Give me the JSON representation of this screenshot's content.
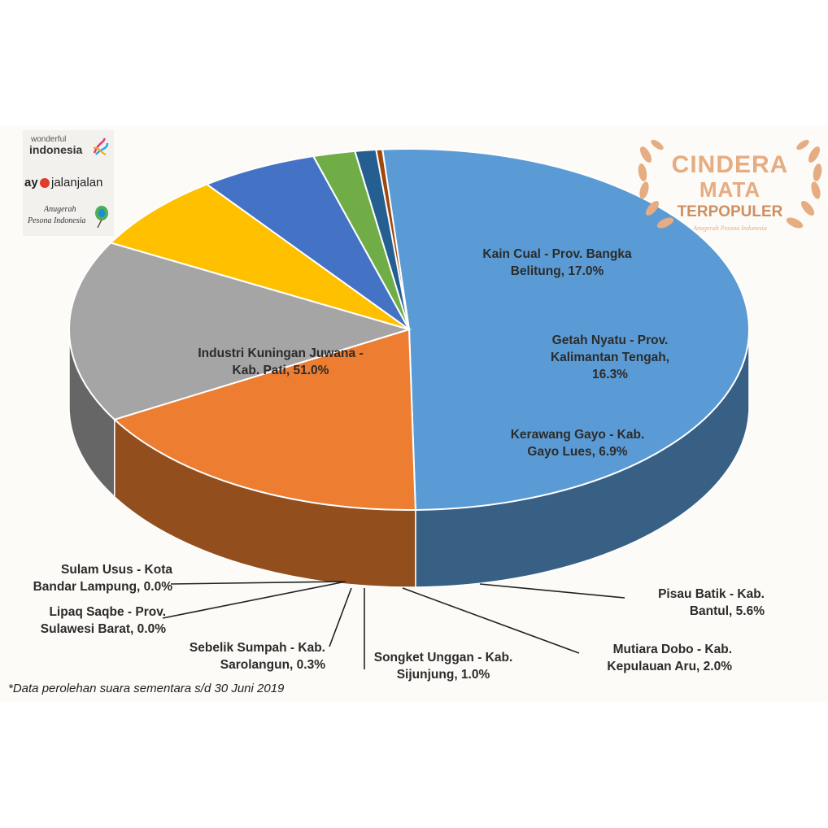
{
  "chart_data": {
    "type": "pie",
    "slices": [
      {
        "label": "Industri Kuningan Juwana - Kab. Pati, 51.0%",
        "value": 51.0,
        "color": "#5b9bd5"
      },
      {
        "label": "Kain Cual - Prov. Bangka Belitung, 17.0%",
        "value": 17.0,
        "color": "#ed7d31"
      },
      {
        "label": "Getah Nyatu - Prov. Kalimantan Tengah, 16.3%",
        "value": 16.3,
        "color": "#a5a5a5"
      },
      {
        "label": "Kerawang Gayo - Kab. Gayo Lues, 6.9%",
        "value": 6.9,
        "color": "#ffc000"
      },
      {
        "label": "Pisau Batik - Kab. Bantul, 5.6%",
        "value": 5.6,
        "color": "#4472c4"
      },
      {
        "label": "Mutiara Dobo - Kab. Kepulauan Aru, 2.0%",
        "value": 2.0,
        "color": "#70ad47"
      },
      {
        "label": "Songket Unggan - Kab. Sijunjung, 1.0%",
        "value": 1.0,
        "color": "#255e91"
      },
      {
        "label": "Sebelik Sumpah - Kab. Sarolangun, 0.3%",
        "value": 0.3,
        "color": "#9e480e"
      },
      {
        "label": "Lipaq Saqbe - Prov. Sulawesi Barat, 0.0%",
        "value": 0.0,
        "color": "#636363"
      },
      {
        "label": "Sulam Usus - Kota Bandar Lampung, 0.0%",
        "value": 0.0,
        "color": "#997300"
      }
    ]
  },
  "labels": {
    "juwana": [
      "Industri Kuningan Juwana -",
      "Kab. Pati, 51.0%"
    ],
    "cual": [
      "Kain Cual - Prov. Bangka",
      "Belitung, 17.0%"
    ],
    "nyatu": [
      "Getah Nyatu - Prov.",
      "Kalimantan Tengah,",
      "16.3%"
    ],
    "gayo": [
      "Kerawang Gayo - Kab.",
      "Gayo Lues, 6.9%"
    ],
    "batik": [
      "Pisau Batik - Kab.",
      "Bantul, 5.6%"
    ],
    "dobo": [
      "Mutiara Dobo - Kab.",
      "Kepulauan Aru, 2.0%"
    ],
    "songket": [
      "Songket Unggan - Kab.",
      "Sijunjung, 1.0%"
    ],
    "sebelik": [
      "Sebelik Sumpah - Kab.",
      "Sarolangun, 0.3%"
    ],
    "lipaq": [
      "Lipaq Saqbe - Prov.",
      "Sulawesi Barat, 0.0%"
    ],
    "sulam": [
      "Sulam Usus - Kota",
      "Bandar Lampung, 0.0%"
    ]
  },
  "note": "*Data perolehan suara sementara s/d 30 Juni 2019",
  "logos": {
    "wonderful_small": "wonderful",
    "wonderful_big": "indonesia",
    "ayo_a": "ay",
    "ayo_b": "jalanjalan",
    "anugerah_1": "Anugerah",
    "anugerah_2": "Pesona Indonesia"
  },
  "badge": {
    "line1": "CINDERA",
    "line2": "MATA",
    "line3": "TERPOPULER",
    "line4": "Anugerah Pesona Indonesia",
    "color": "#e6ac82"
  }
}
